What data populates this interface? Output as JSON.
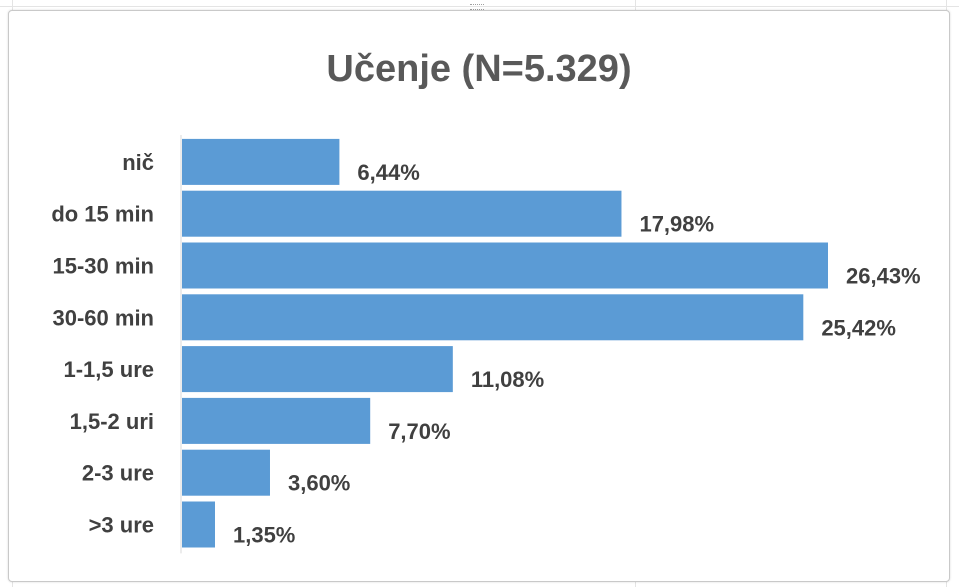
{
  "chart_data": {
    "type": "bar",
    "orientation": "horizontal",
    "title": "Učenje (N=5.329)",
    "categories": [
      "nič",
      "do 15 min",
      "15-30 min",
      "30-60 min",
      "1-1,5 ure",
      "1,5-2 uri",
      "2-3 ure",
      ">3 ure"
    ],
    "values": [
      6.44,
      17.98,
      26.43,
      25.42,
      11.08,
      7.7,
      3.6,
      1.35
    ],
    "data_labels": [
      "6,44%",
      "17,98%",
      "26,43%",
      "25,42%",
      "11,08%",
      "7,70%",
      "3,60%",
      "1,35%"
    ],
    "xlabel": "",
    "ylabel": "",
    "xlim": [
      0,
      26.43
    ],
    "grid": false,
    "legend": "none",
    "bar_color": "#5b9bd5",
    "title_color": "#595959",
    "label_color": "#404040"
  }
}
